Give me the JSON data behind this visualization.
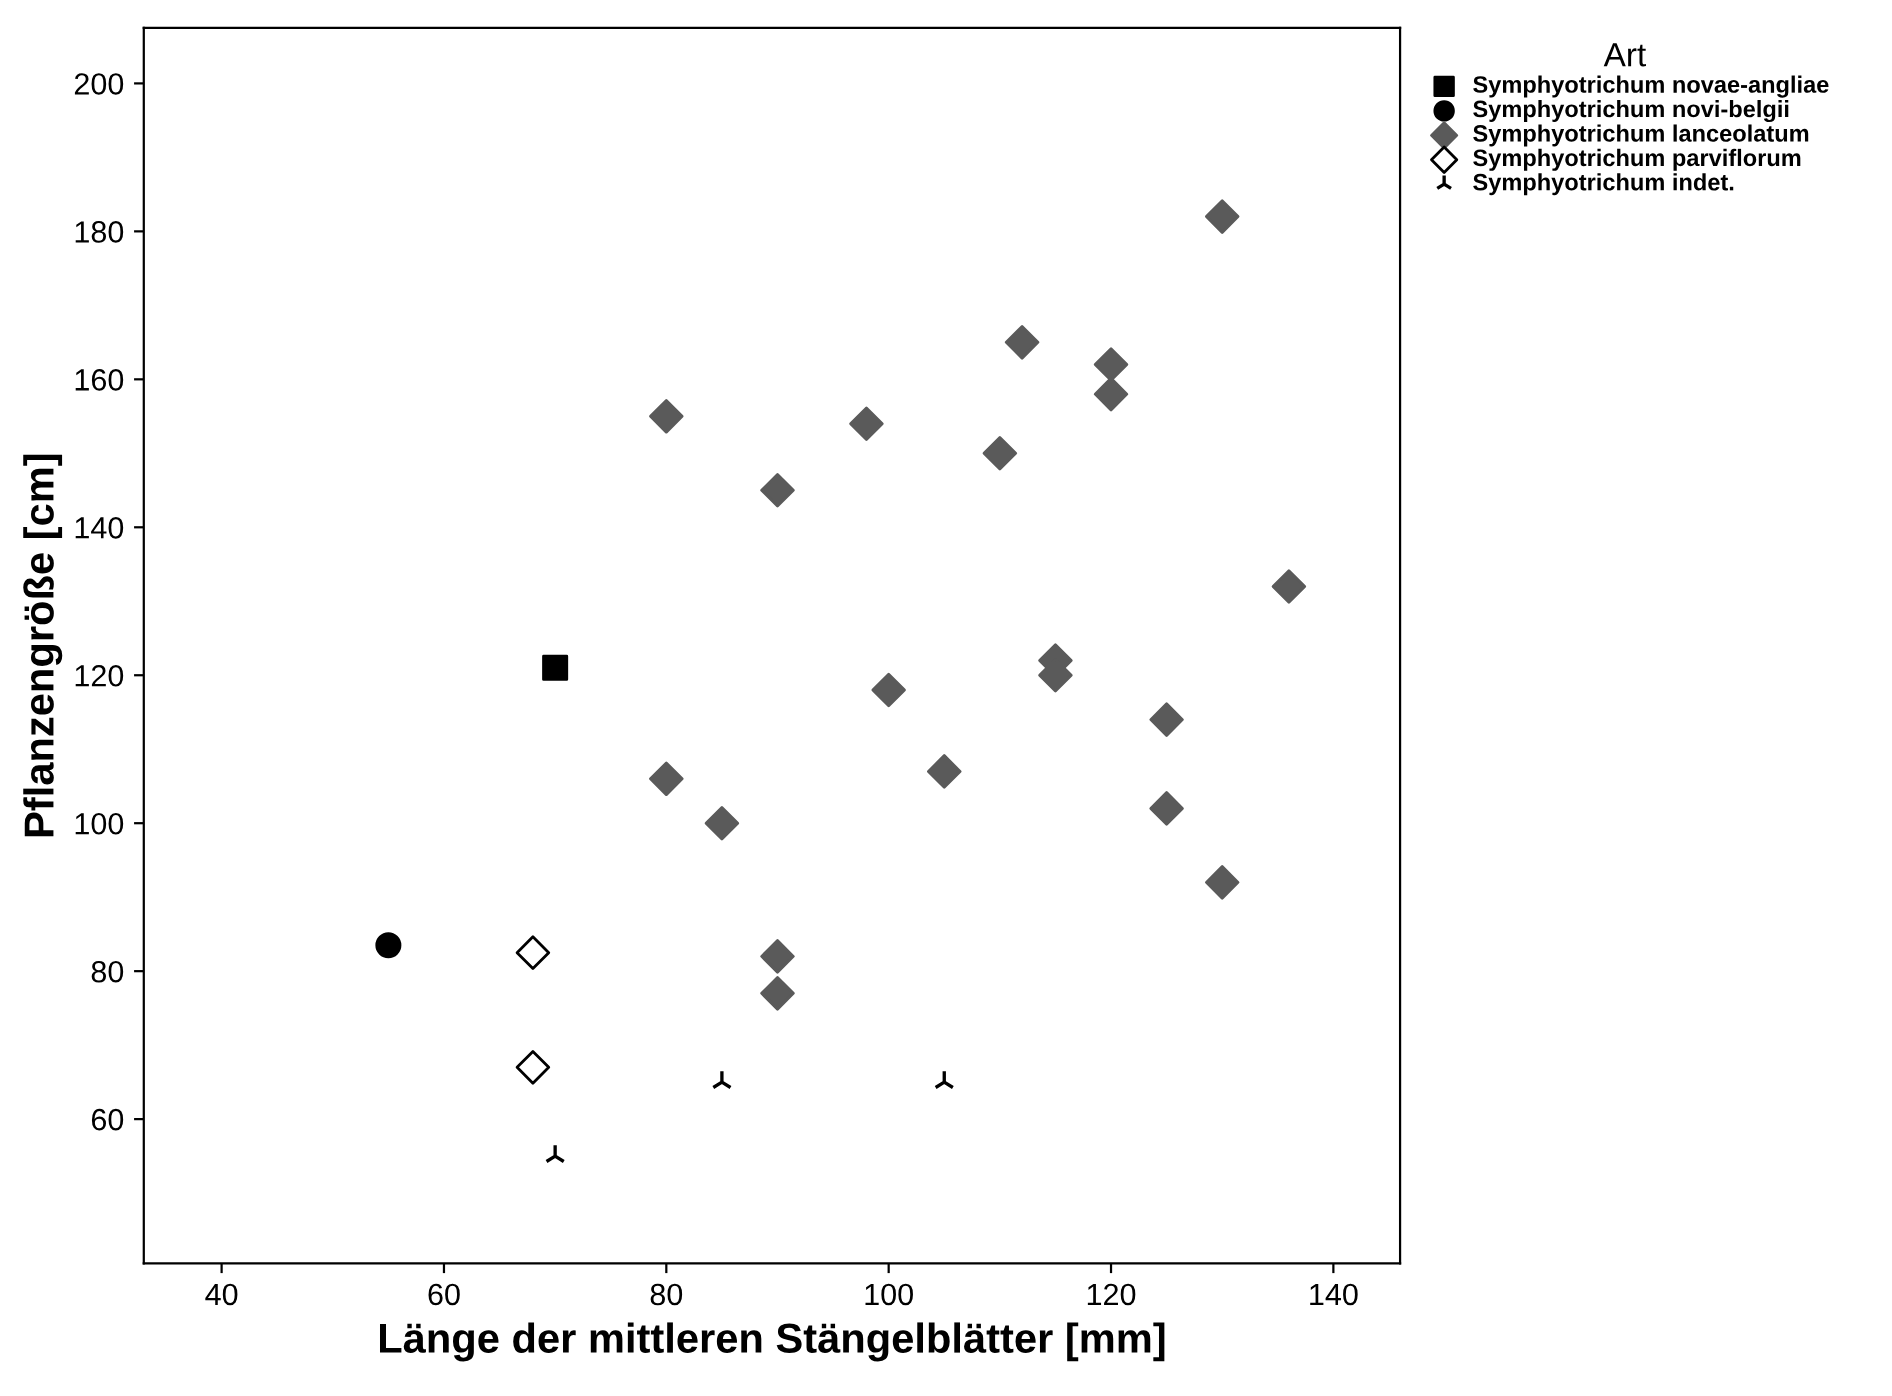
{
  "chart_data": {
    "type": "scatter",
    "xlabel": "Länge der mittleren Stängelblätter [mm]",
    "ylabel": "Pflanzengröße [cm]",
    "legend_title": "Art",
    "legend": "right",
    "grid": false,
    "xlim": [
      33,
      146
    ],
    "ylim": [
      40.5,
      207.5
    ],
    "xticks": [
      40,
      60,
      80,
      100,
      120,
      140
    ],
    "yticks": [
      60,
      80,
      100,
      120,
      140,
      160,
      180,
      200
    ],
    "series": [
      {
        "name": "Symphyotrichum novae-angliae",
        "color": "#000000",
        "marker": "square",
        "x": [
          70
        ],
        "values": [
          121
        ]
      },
      {
        "name": "Symphyotrichum novi-belgii",
        "color": "#000000",
        "marker": "circle",
        "x": [
          55
        ],
        "values": [
          83.5
        ]
      },
      {
        "name": "Symphyotrichum lanceolatum",
        "color": "#5a5a5a",
        "marker": "diamond",
        "x": [
          130,
          112,
          120,
          120,
          80,
          98,
          110,
          90,
          136,
          115,
          115,
          100,
          125,
          105,
          80,
          125,
          85,
          130,
          90,
          90
        ],
        "values": [
          182,
          165,
          162,
          158,
          155,
          154,
          150,
          145,
          132,
          122,
          120,
          118,
          114,
          107,
          106,
          102,
          100,
          92,
          82,
          77
        ]
      },
      {
        "name": "Symphyotrichum parviflorum",
        "color": "#ffffff",
        "marker": "diamond",
        "x": [
          68,
          68
        ],
        "values": [
          82.5,
          67
        ]
      },
      {
        "name": "Symphyotrichum indet.",
        "color": "#000000",
        "marker": "cross",
        "x": [
          70,
          85,
          105
        ],
        "values": [
          55,
          65,
          65
        ]
      }
    ]
  }
}
